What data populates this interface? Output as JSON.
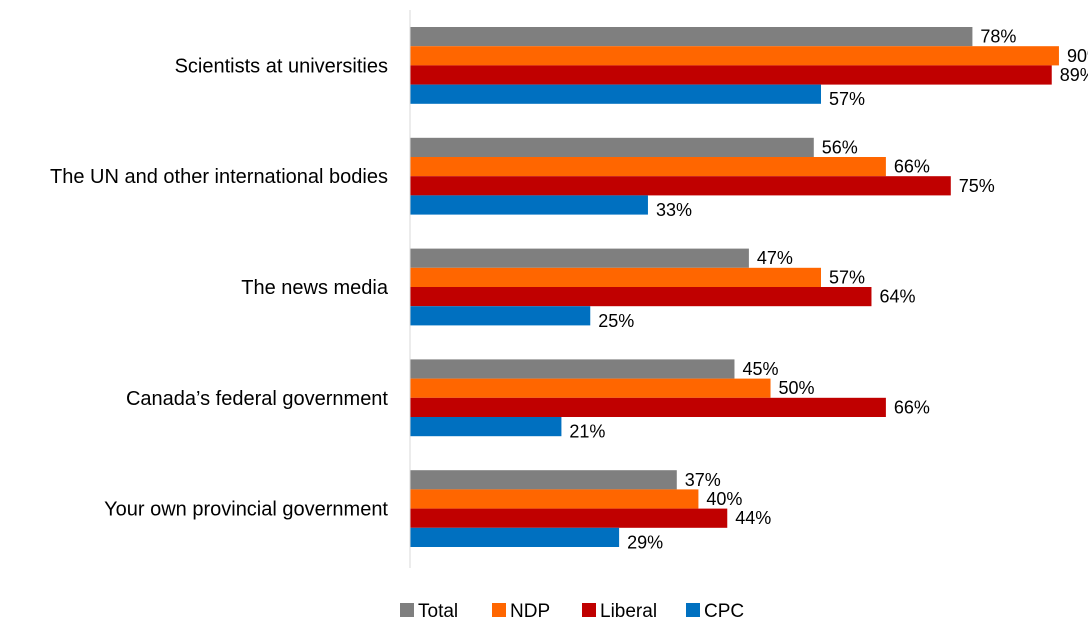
{
  "chart_data": {
    "type": "bar",
    "orientation": "horizontal",
    "categories": [
      "Scientists at universities",
      "The UN and other international bodies",
      "The news media",
      "Canada’s federal government",
      "Your own provincial government"
    ],
    "series": [
      {
        "name": "Total",
        "color": "#7f7f7f",
        "values": [
          78,
          56,
          47,
          45,
          37
        ]
      },
      {
        "name": "NDP",
        "color": "#ff6600",
        "values": [
          90,
          66,
          57,
          50,
          40
        ]
      },
      {
        "name": "Liberal",
        "color": "#c00000",
        "values": [
          89,
          75,
          64,
          66,
          44
        ]
      },
      {
        "name": "CPC",
        "color": "#0070c0",
        "values": [
          57,
          33,
          25,
          21,
          29
        ]
      }
    ],
    "value_suffix": "%",
    "xlim": [
      0,
      95
    ],
    "grid": false,
    "legend_position": "bottom"
  }
}
